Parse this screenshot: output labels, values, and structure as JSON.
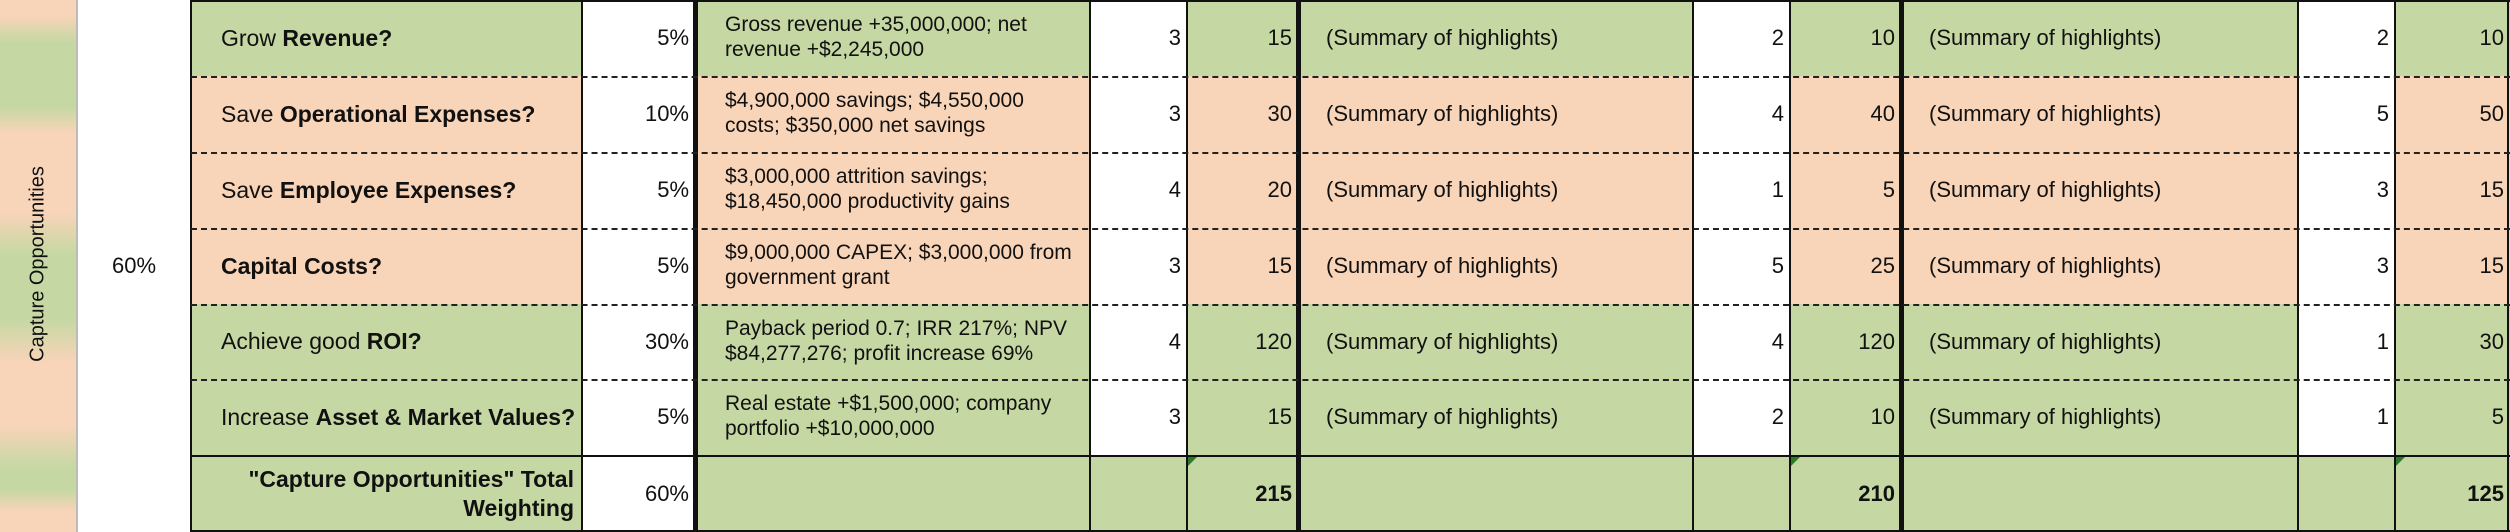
{
  "colors": {
    "green": "#c5d8a3",
    "orange": "#f8d4b8",
    "flag": "#2a7a2a"
  },
  "section": {
    "label": "Capture Opportunities",
    "weight": "60%"
  },
  "rows": [
    {
      "pre": "Grow ",
      "bold": "Revenue?",
      "weight": "5%",
      "desc": "Gross revenue +35,000,000; net revenue +$2,245,000",
      "s1": "3",
      "t1": "15",
      "sum2": "(Summary of highlights)",
      "s2": "2",
      "t2": "10",
      "sum3": "(Summary of highlights)",
      "s3": "2",
      "t3": "10"
    },
    {
      "pre": "Save ",
      "bold": "Operational Expenses?",
      "weight": "10%",
      "desc": "$4,900,000 savings; $4,550,000 costs; $350,000 net savings",
      "s1": "3",
      "t1": "30",
      "sum2": "(Summary of highlights)",
      "s2": "4",
      "t2": "40",
      "sum3": "(Summary of highlights)",
      "s3": "5",
      "t3": "50"
    },
    {
      "pre": "Save ",
      "bold": "Employee Expenses?",
      "weight": "5%",
      "desc": "$3,000,000 attrition savings; $18,450,000 productivity gains",
      "s1": "4",
      "t1": "20",
      "sum2": "(Summary of highlights)",
      "s2": "1",
      "t2": "5",
      "sum3": "(Summary of highlights)",
      "s3": "3",
      "t3": "15"
    },
    {
      "pre": "",
      "bold": "Capital Costs?",
      "weight": "5%",
      "desc": "$9,000,000 CAPEX; $3,000,000 from government grant",
      "s1": "3",
      "t1": "15",
      "sum2": "(Summary of highlights)",
      "s2": "5",
      "t2": "25",
      "sum3": "(Summary of highlights)",
      "s3": "3",
      "t3": "15"
    },
    {
      "pre": "Achieve good ",
      "bold": "ROI?",
      "weight": "30%",
      "desc": "Payback period 0.7; IRR 217%; NPV $84,277,276; profit increase 69%",
      "s1": "4",
      "t1": "120",
      "sum2": "(Summary of highlights)",
      "s2": "4",
      "t2": "120",
      "sum3": "(Summary of highlights)",
      "s3": "1",
      "t3": "30"
    },
    {
      "pre": "Increase ",
      "bold": "Asset & Market Values?",
      "weight": "5%",
      "desc": "Real estate +$1,500,000; company portfolio +$10,000,000",
      "s1": "3",
      "t1": "15",
      "sum2": "(Summary of highlights)",
      "s2": "2",
      "t2": "10",
      "sum3": "(Summary of highlights)",
      "s3": "1",
      "t3": "5"
    }
  ],
  "total": {
    "label": "\"Capture Opportunities\" Total Weighting",
    "weight": "60%",
    "t1": "215",
    "t2": "210",
    "t3": "125"
  }
}
